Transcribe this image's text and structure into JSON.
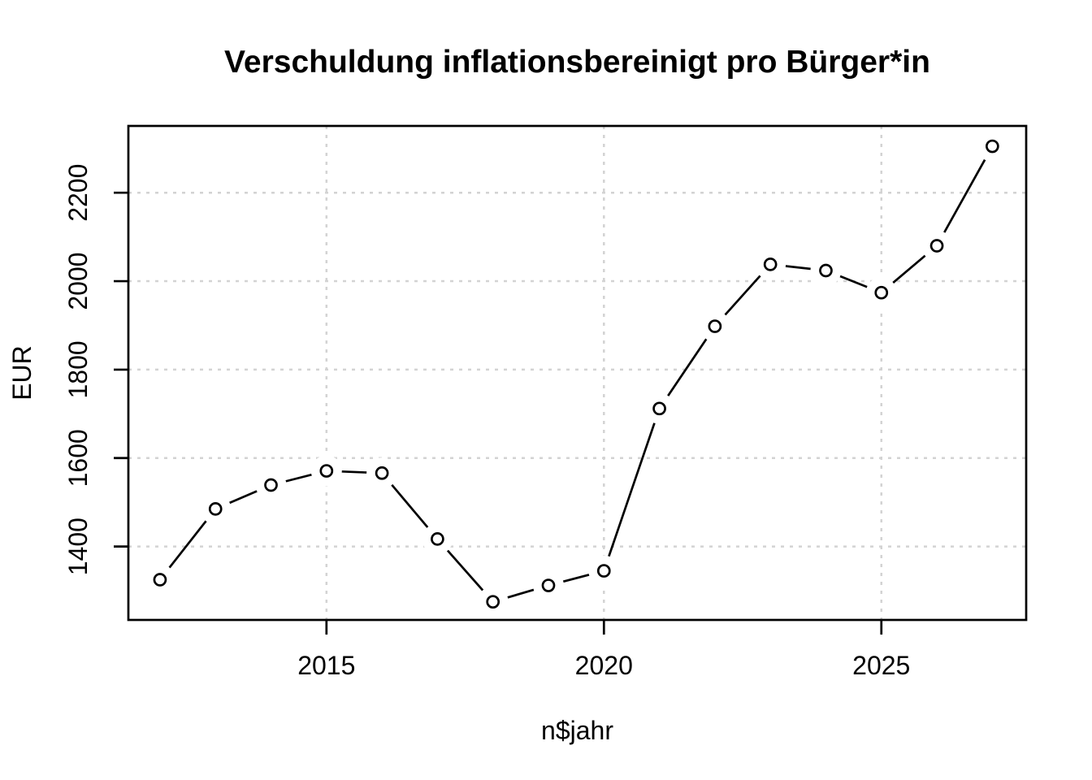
{
  "chart_data": {
    "type": "line",
    "title": "Verschuldung inflationsbereinigt pro Bürger*in",
    "xlabel": "n$jahr",
    "ylabel": "EUR",
    "x": [
      2012,
      2013,
      2014,
      2015,
      2016,
      2017,
      2018,
      2019,
      2020,
      2021,
      2022,
      2023,
      2024,
      2025,
      2026,
      2027
    ],
    "y": [
      1325,
      1485,
      1539,
      1571,
      1566,
      1417,
      1275,
      1312,
      1345,
      1712,
      1898,
      2038,
      2024,
      1974,
      2080,
      2305
    ],
    "xticks": [
      2015,
      2020,
      2025
    ],
    "yticks": [
      1400,
      1600,
      1800,
      2000,
      2200
    ],
    "xlim": [
      2011.43,
      2027.61
    ],
    "ylim": [
      1234,
      2351
    ],
    "grid": true,
    "grid_style": "dotted",
    "legend": "none",
    "marker": "open-circle",
    "line_style": "points-and-segments",
    "colors": {
      "line": "#000000",
      "marker_stroke": "#000000",
      "marker_fill": "#ffffff",
      "grid": "#d3d3d3",
      "axis": "#000000",
      "text": "#000000",
      "background": "#ffffff"
    }
  }
}
